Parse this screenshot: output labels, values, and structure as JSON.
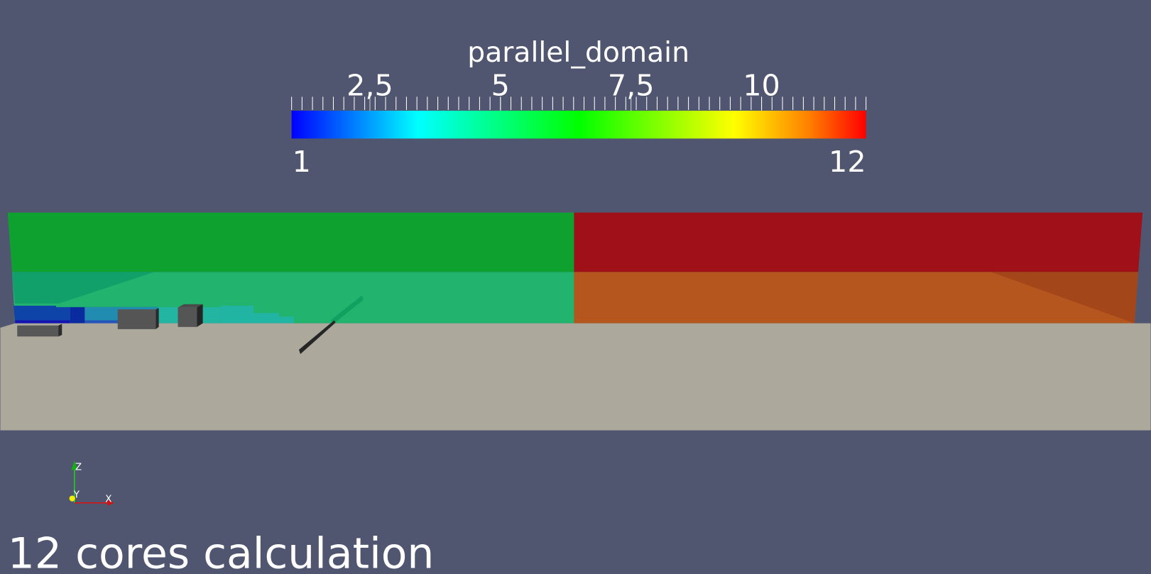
{
  "colorbar": {
    "title": "parallel_domain",
    "range": [
      1,
      12
    ],
    "min_label": "1",
    "max_label": "12",
    "tick_labels": [
      {
        "value": 2.5,
        "label": "2,5"
      },
      {
        "value": 5,
        "label": "5"
      },
      {
        "value": 7.5,
        "label": "7,5"
      },
      {
        "value": 10,
        "label": "10"
      }
    ],
    "colormap": [
      "#0000ff",
      "#00ffff",
      "#00ff00",
      "#ffff00",
      "#ff8000",
      "#ff0000"
    ]
  },
  "scene": {
    "background": "#515670",
    "floor_color": "#aca99c",
    "domain_colors": {
      "upper_left": "#0fa130",
      "upper_right": "#a01018",
      "lower_left": "#22b36e",
      "lower_right": "#b5561f"
    }
  },
  "axes": {
    "x": "X",
    "y": "Y",
    "z": "Z"
  },
  "caption": "12 cores calculation"
}
